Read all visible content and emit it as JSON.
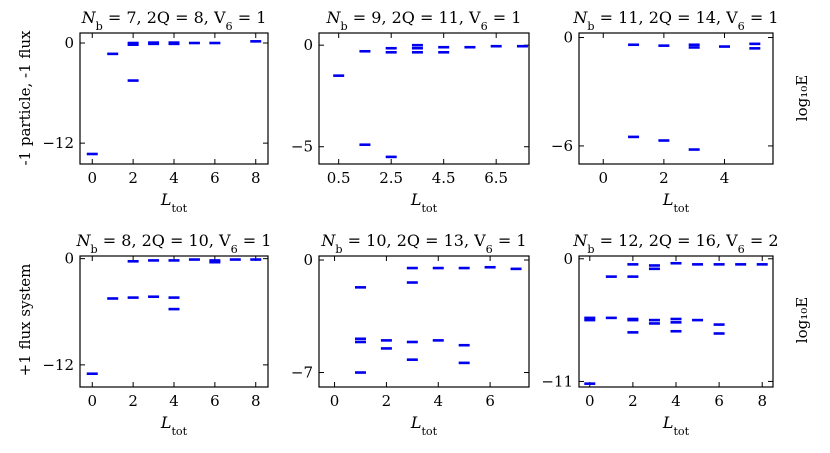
{
  "figure": {
    "row_labels": [
      "-1 particle, -1 flux",
      "+1 flux system"
    ],
    "side_label": "log₁₀E"
  },
  "chart_data": [
    {
      "type": "scatter",
      "title": "N_b = 7, 2Q = 8, V_6 = 1",
      "xlabel": "L_tot",
      "xlim": [
        -0.6,
        8.6
      ],
      "ylim": [
        -14.5,
        1.2
      ],
      "xticks": [
        0,
        2,
        4,
        6,
        8
      ],
      "yticks": [
        0,
        -12
      ],
      "points": [
        {
          "x": 0,
          "y": [
            -13.3
          ]
        },
        {
          "x": 1,
          "y": [
            -1.3
          ]
        },
        {
          "x": 2,
          "y": [
            -0.2,
            0,
            -4.5
          ]
        },
        {
          "x": 3,
          "y": [
            -0.1,
            0.05
          ]
        },
        {
          "x": 4,
          "y": [
            -0.1,
            0.05
          ]
        },
        {
          "x": 5,
          "y": [
            0
          ]
        },
        {
          "x": 6,
          "y": [
            0
          ]
        },
        {
          "x": 8,
          "y": [
            0.2
          ]
        }
      ]
    },
    {
      "type": "scatter",
      "title": "N_b = 9, 2Q = 11, V_6 = 1",
      "xlabel": "L_tot",
      "xlim": [
        -0.25,
        7.75
      ],
      "ylim": [
        -5.85,
        0.6
      ],
      "xticks": [
        0.5,
        2.5,
        4.5,
        6.5
      ],
      "yticks": [
        0,
        -5
      ],
      "points": [
        {
          "x": 0.5,
          "y": [
            -1.5
          ]
        },
        {
          "x": 1.5,
          "y": [
            -0.3,
            -4.9
          ]
        },
        {
          "x": 2.5,
          "y": [
            -0.15,
            -0.35,
            -5.5
          ]
        },
        {
          "x": 3.5,
          "y": [
            0,
            -0.15,
            -0.35
          ]
        },
        {
          "x": 4.5,
          "y": [
            -0.1,
            -0.35
          ]
        },
        {
          "x": 5.5,
          "y": [
            -0.1
          ]
        },
        {
          "x": 6.5,
          "y": [
            -0.05
          ]
        },
        {
          "x": 7.5,
          "y": [
            -0.05
          ]
        }
      ]
    },
    {
      "type": "scatter",
      "title": "N_b = 11, 2Q = 14, V_6 = 1",
      "xlabel": "L_tot",
      "xlim": [
        -0.8,
        5.6
      ],
      "ylim": [
        -7.0,
        0.25
      ],
      "xticks": [
        0,
        2,
        4
      ],
      "yticks": [
        0,
        -6
      ],
      "points": [
        {
          "x": 1,
          "y": [
            -0.4,
            -5.5
          ]
        },
        {
          "x": 2,
          "y": [
            -0.45,
            -5.7
          ]
        },
        {
          "x": 3,
          "y": [
            -0.4,
            -0.55,
            -6.2
          ]
        },
        {
          "x": 4,
          "y": [
            -0.5
          ]
        },
        {
          "x": 5,
          "y": [
            -0.35,
            -0.6
          ]
        }
      ]
    },
    {
      "type": "scatter",
      "title": "N_b = 8, 2Q = 10, V_6 = 1",
      "xlabel": "L_tot",
      "xlim": [
        -0.6,
        8.6
      ],
      "ylim": [
        -14.5,
        0.3
      ],
      "xticks": [
        0,
        2,
        4,
        6,
        8
      ],
      "yticks": [
        0,
        -12
      ],
      "points": [
        {
          "x": 0,
          "y": [
            -13.0
          ]
        },
        {
          "x": 1,
          "y": [
            -4.5
          ]
        },
        {
          "x": 2,
          "y": [
            -0.3,
            -4.4
          ]
        },
        {
          "x": 3,
          "y": [
            -0.2,
            -4.3
          ]
        },
        {
          "x": 4,
          "y": [
            -0.2,
            -4.4,
            -5.7
          ]
        },
        {
          "x": 5,
          "y": [
            -0.1
          ]
        },
        {
          "x": 6,
          "y": [
            -0.2,
            -0.4
          ]
        },
        {
          "x": 7,
          "y": [
            -0.1
          ]
        },
        {
          "x": 8,
          "y": [
            -0.1
          ]
        }
      ]
    },
    {
      "type": "scatter",
      "title": "N_b = 10, 2Q = 13, V_6 = 1",
      "xlabel": "L_tot",
      "xlim": [
        -0.6,
        7.5
      ],
      "ylim": [
        -7.9,
        0.25
      ],
      "xticks": [
        0,
        2,
        4,
        6
      ],
      "yticks": [
        0,
        -7
      ],
      "points": [
        {
          "x": 1,
          "y": [
            -1.7,
            -4.9,
            -5.1,
            -7.0
          ]
        },
        {
          "x": 2,
          "y": [
            -5.0,
            -5.5
          ]
        },
        {
          "x": 3,
          "y": [
            -0.5,
            -1.4,
            -5.1,
            -6.2
          ]
        },
        {
          "x": 4,
          "y": [
            -0.5,
            -5.0
          ]
        },
        {
          "x": 5,
          "y": [
            -0.5,
            -5.3,
            -6.4
          ]
        },
        {
          "x": 6,
          "y": [
            -0.45
          ]
        },
        {
          "x": 7,
          "y": [
            -0.55
          ]
        }
      ]
    },
    {
      "type": "scatter",
      "title": "N_b = 12, 2Q = 16, V_6 = 2",
      "xlabel": "L_tot",
      "xlim": [
        -0.5,
        8.5
      ],
      "ylim": [
        -11.5,
        0.25
      ],
      "xticks": [
        0,
        2,
        4,
        6,
        8
      ],
      "yticks": [
        0,
        -11
      ],
      "points": [
        {
          "x": 0,
          "y": [
            -5.3,
            -5.5,
            -11.2
          ]
        },
        {
          "x": 1,
          "y": [
            -1.6,
            -5.3
          ]
        },
        {
          "x": 2,
          "y": [
            -0.5,
            -1.6,
            -5.4,
            -5.5,
            -6.6
          ]
        },
        {
          "x": 3,
          "y": [
            -0.6,
            -0.9,
            -5.5,
            -5.8
          ]
        },
        {
          "x": 4,
          "y": [
            -0.4,
            -5.4,
            -5.7,
            -6.5
          ]
        },
        {
          "x": 5,
          "y": [
            -0.5,
            -5.5
          ]
        },
        {
          "x": 6,
          "y": [
            -0.5,
            -5.9,
            -6.7
          ]
        },
        {
          "x": 7,
          "y": [
            -0.5
          ]
        },
        {
          "x": 8,
          "y": [
            -0.5
          ]
        }
      ]
    }
  ]
}
